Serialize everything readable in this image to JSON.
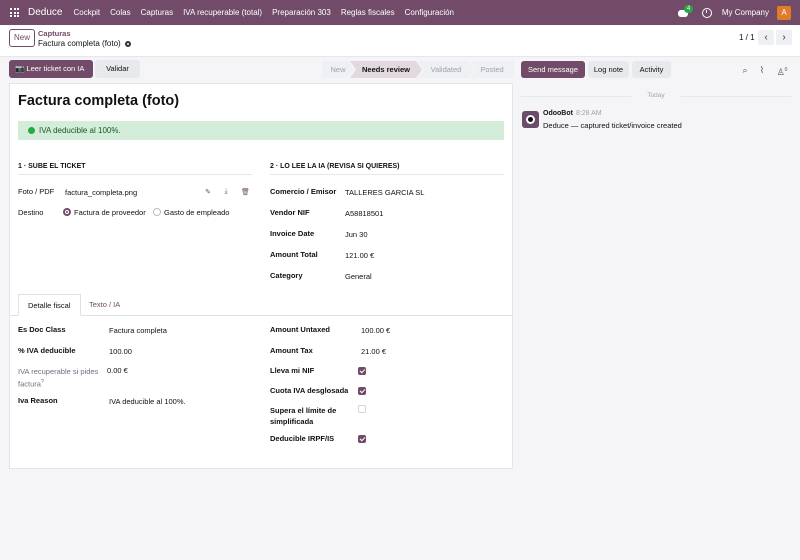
{
  "nav": {
    "brand": "Deduce",
    "menu": [
      "Cockpit",
      "Colas",
      "Capturas",
      "IVA recuperable (total)",
      "Preparación 303",
      "Reglas fiscales",
      "Configuración"
    ],
    "chat_count": "4",
    "company": "My Company",
    "avatar_letter": "A"
  },
  "control": {
    "new_label": "New",
    "breadcrumb_parent": "Capturas",
    "breadcrumb_current": "Factura completa (foto)",
    "pager": "1 / 1"
  },
  "actions": {
    "read_ticket": "Leer ticket con IA",
    "validate": "Validar"
  },
  "statusbar": [
    "New",
    "Needs review",
    "Validated",
    "Posted"
  ],
  "status_active": "Needs review",
  "form": {
    "title": "Factura completa (foto)",
    "alert": "IVA deducible al 100%.",
    "section1": "1 · SUBE EL TICKET",
    "section2": "2 · LO LEE LA IA (REVISA SI QUIERES)",
    "photo_label": "Foto / PDF",
    "photo_value": "factura_completa.png",
    "destino_label": "Destino",
    "destino_opt1": "Factura de proveedor",
    "destino_opt2": "Gasto de empleado",
    "commerce_label": "Comercio / Emisor",
    "commerce_value": "TALLERES GARCIA SL",
    "vendor_nif_label": "Vendor NIF",
    "vendor_nif_value": "A58818501",
    "invoice_date_label": "Invoice Date",
    "invoice_date_value": "Jun 30",
    "amount_total_label": "Amount Total",
    "amount_total_value": "121.00 €",
    "category_label": "Category",
    "category_value": "General"
  },
  "tabs": [
    "Detalle fiscal",
    "Texto / IA"
  ],
  "fiscal": {
    "doc_class_label": "Es Doc Class",
    "doc_class_value": "Factura completa",
    "pct_iva_label": "% IVA deducible",
    "pct_iva_value": "100.00",
    "iva_recup_label": "IVA recuperable si pides factura",
    "iva_recup_sup": "?",
    "iva_recup_value": "0.00 €",
    "iva_reason_label": "Iva Reason",
    "iva_reason_value": "IVA deducible al 100%.",
    "amount_untaxed_label": "Amount Untaxed",
    "amount_untaxed_value": "100.00 €",
    "amount_tax_label": "Amount Tax",
    "amount_tax_value": "21.00 €",
    "lleva_nif_label": "Lleva mi NIF",
    "cuota_iva_label": "Cuota IVA desglosada",
    "supera_label": "Supera el límite de simplificada",
    "deducible_label": "Deducible IRPF/IS"
  },
  "chatter": {
    "send_message": "Send message",
    "log_note": "Log note",
    "activity": "Activity",
    "followers": "0",
    "today": "Today",
    "author": "OdooBot",
    "time": "8:28 AM",
    "body": "Deduce — captured ticket/invoice created"
  }
}
